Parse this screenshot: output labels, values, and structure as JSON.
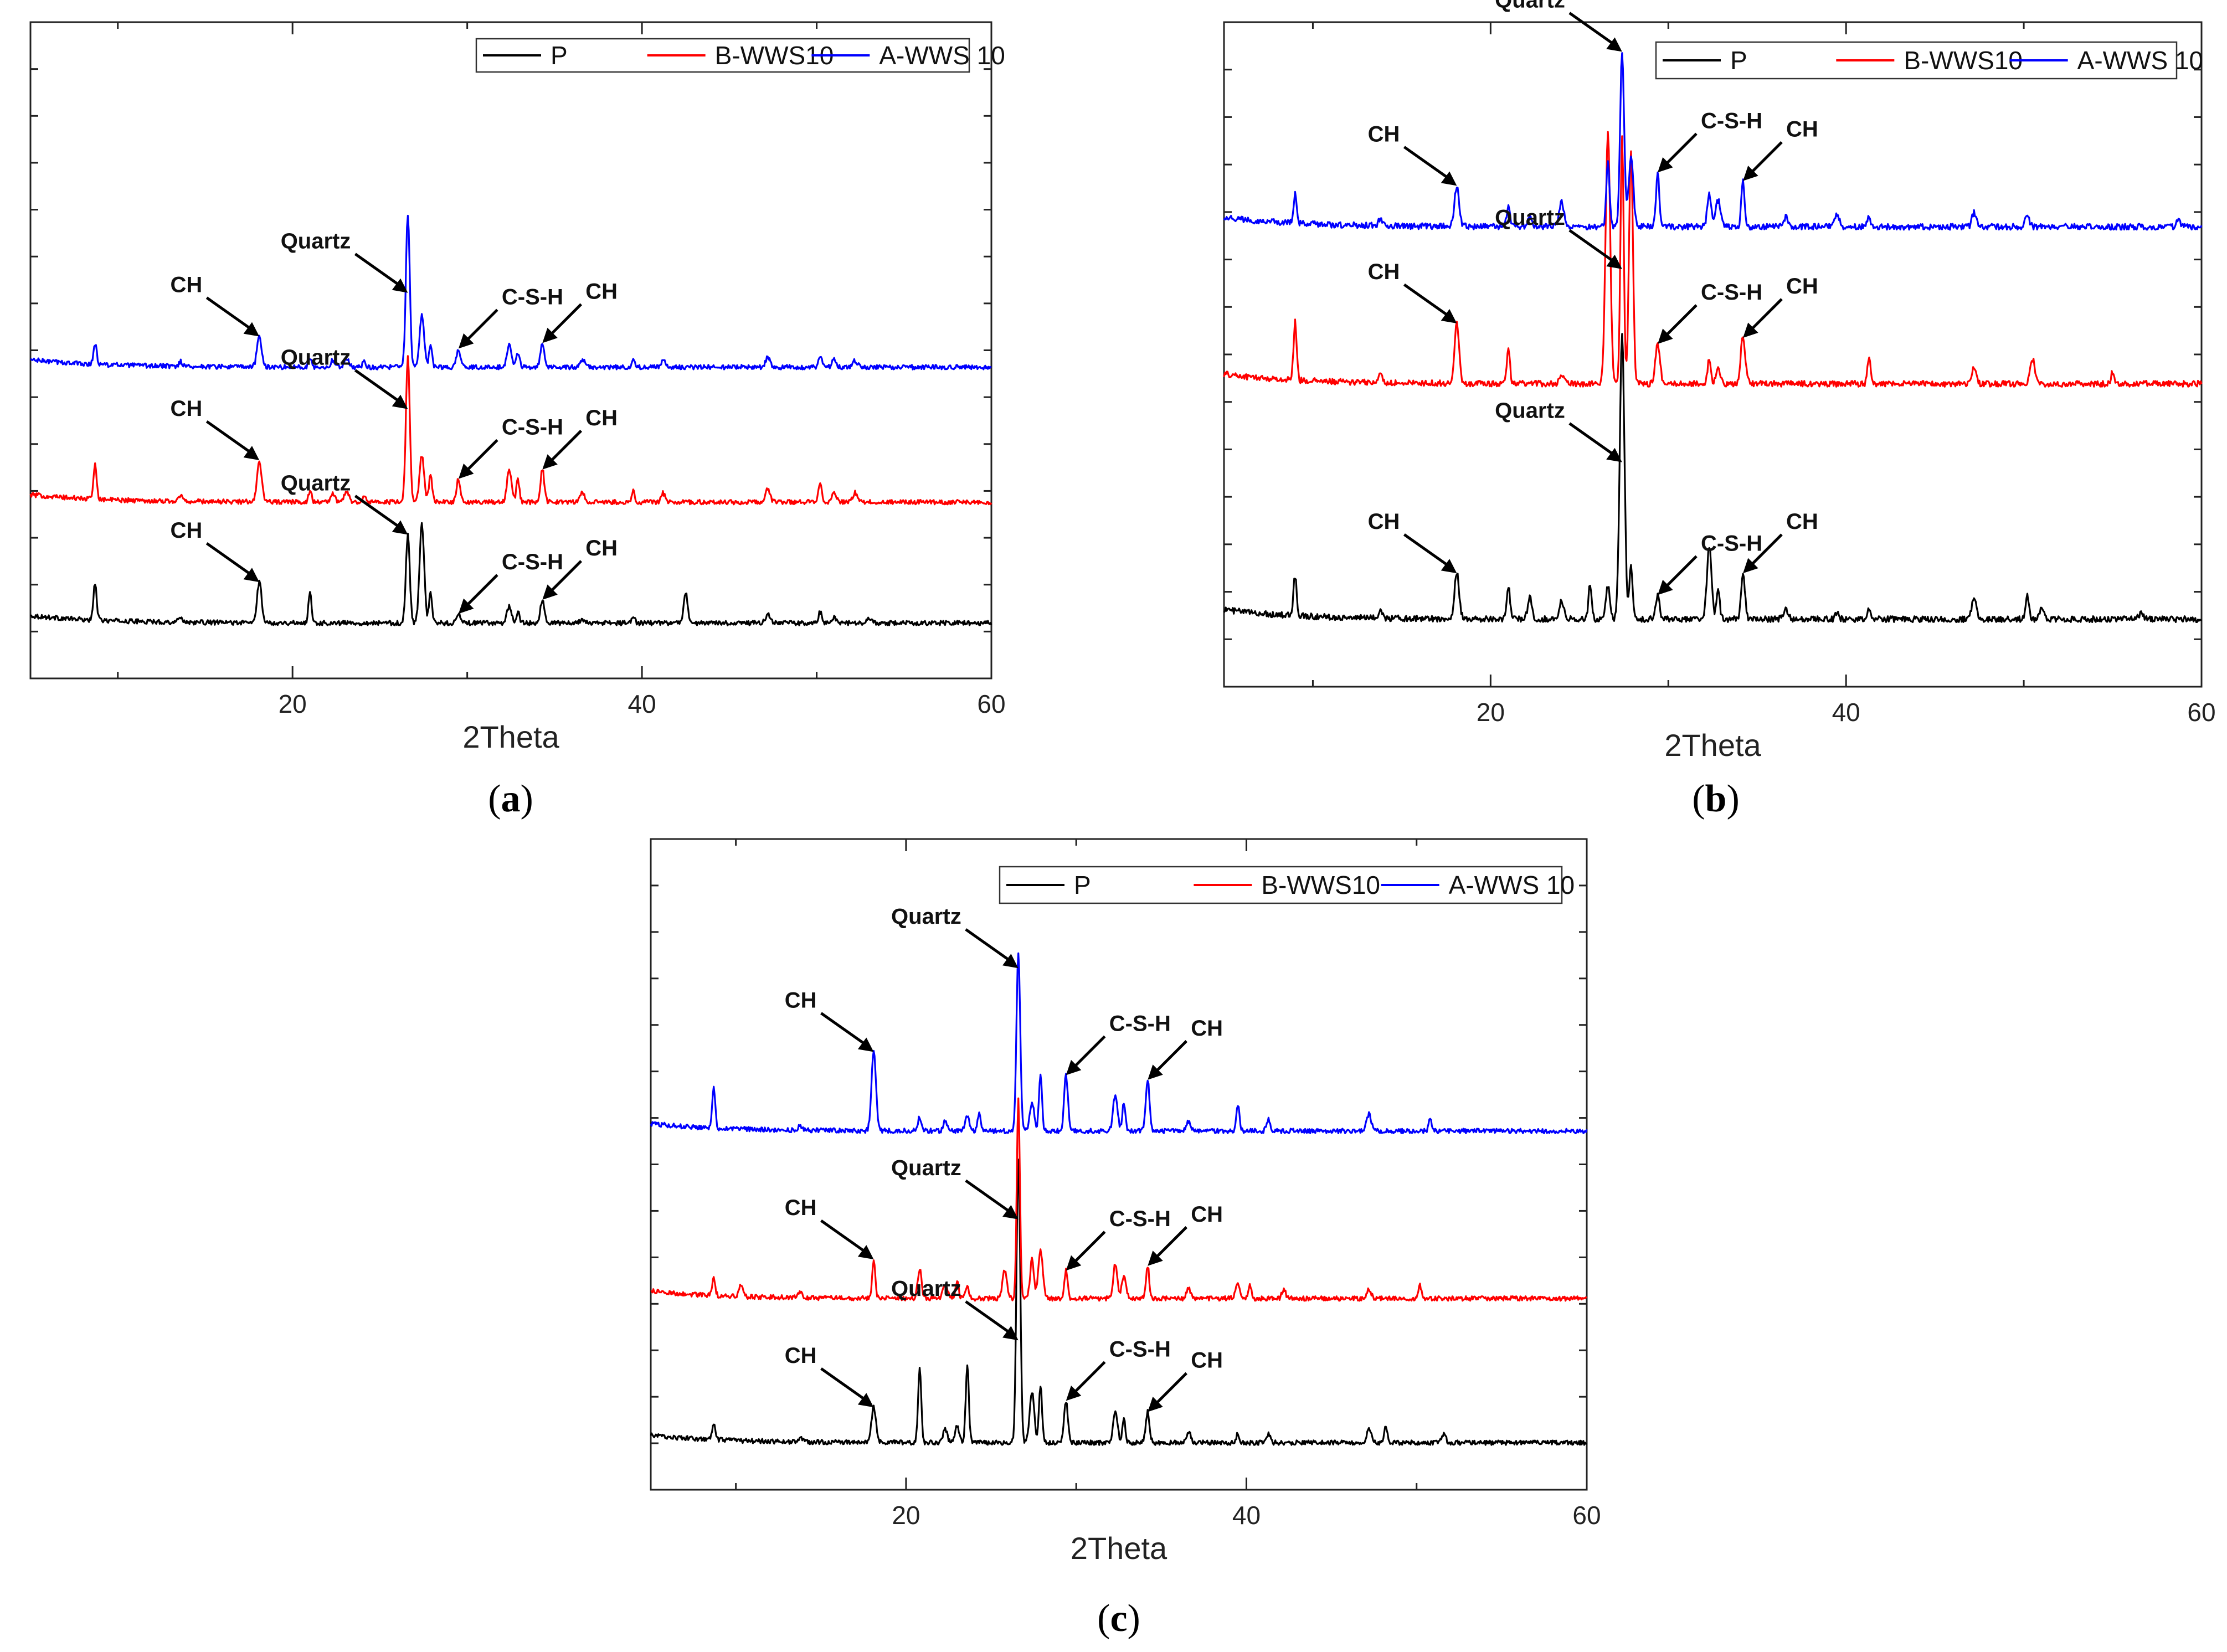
{
  "chart_data": [
    {
      "id": "a",
      "type": "line",
      "panel_label": "a",
      "xlabel": "2Theta",
      "ylabel": "",
      "xlim": [
        5,
        60
      ],
      "xticks": [
        20,
        40,
        60
      ],
      "legend": {
        "placement": "top-right",
        "entries": [
          "P",
          "B-WWS10",
          "A-WWS 10"
        ]
      },
      "series": [
        {
          "name": "P",
          "color": "#000000",
          "offset": 0.0,
          "x": [
            8.7,
            13.6,
            18.1,
            21.0,
            26.6,
            27.4,
            27.9,
            29.5,
            32.4,
            32.9,
            34.3,
            36.6,
            39.5,
            42.5,
            47.2,
            50.2,
            51.0,
            53.0
          ],
          "y": [
            0.4,
            0.06,
            0.44,
            0.32,
            0.95,
            1.08,
            0.32,
            0.1,
            0.18,
            0.12,
            0.25,
            0.04,
            0.07,
            0.33,
            0.1,
            0.12,
            0.06,
            0.04
          ]
        },
        {
          "name": "B-WWS10",
          "color": "#ff0000",
          "offset": 1.3,
          "x": [
            8.7,
            13.6,
            18.1,
            21.0,
            22.3,
            23.1,
            24.1,
            26.6,
            27.4,
            27.9,
            29.5,
            32.4,
            32.9,
            34.3,
            36.6,
            39.5,
            41.2,
            47.2,
            50.2,
            51.0,
            52.2
          ],
          "y": [
            0.38,
            0.06,
            0.45,
            0.12,
            0.1,
            0.12,
            0.08,
            1.55,
            0.5,
            0.3,
            0.25,
            0.34,
            0.24,
            0.35,
            0.1,
            0.12,
            0.1,
            0.15,
            0.2,
            0.12,
            0.1
          ]
        },
        {
          "name": "A-WWS 10",
          "color": "#0000ff",
          "offset": 2.75,
          "x": [
            8.7,
            13.6,
            18.1,
            21.0,
            22.3,
            23.1,
            24.1,
            26.6,
            27.4,
            27.9,
            29.5,
            32.4,
            32.9,
            34.3,
            36.6,
            39.5,
            41.2,
            47.2,
            50.2,
            51.0,
            52.2
          ],
          "y": [
            0.22,
            0.05,
            0.33,
            0.1,
            0.08,
            0.1,
            0.07,
            1.65,
            0.55,
            0.22,
            0.2,
            0.25,
            0.16,
            0.26,
            0.08,
            0.1,
            0.08,
            0.1,
            0.13,
            0.09,
            0.07
          ]
        }
      ],
      "annotations": [
        {
          "text": "CH",
          "series": "P",
          "x": 18.1,
          "y": 0.44
        },
        {
          "text": "Quartz",
          "series": "P",
          "x": 26.6,
          "y": 0.95
        },
        {
          "text": "C-S-H",
          "series": "P",
          "x": 29.5,
          "y": 0.1
        },
        {
          "text": "CH",
          "series": "P",
          "x": 34.3,
          "y": 0.25
        },
        {
          "text": "CH",
          "series": "B-WWS10",
          "x": 18.1,
          "y": 0.45
        },
        {
          "text": "Quartz",
          "series": "B-WWS10",
          "x": 26.6,
          "y": 1.0
        },
        {
          "text": "C-S-H",
          "series": "B-WWS10",
          "x": 29.5,
          "y": 0.25
        },
        {
          "text": "CH",
          "series": "B-WWS10",
          "x": 34.3,
          "y": 0.35
        },
        {
          "text": "CH",
          "series": "A-WWS 10",
          "x": 18.1,
          "y": 0.33
        },
        {
          "text": "Quartz",
          "series": "A-WWS 10",
          "x": 26.6,
          "y": 0.8
        },
        {
          "text": "C-S-H",
          "series": "A-WWS 10",
          "x": 29.5,
          "y": 0.2
        },
        {
          "text": "CH",
          "series": "A-WWS 10",
          "x": 34.3,
          "y": 0.26
        }
      ]
    },
    {
      "id": "b",
      "type": "line",
      "panel_label": "b",
      "xlabel": "2Theta",
      "ylabel": "",
      "xlim": [
        5,
        60
      ],
      "xticks": [
        20,
        40,
        60
      ],
      "legend": {
        "placement": "top-right",
        "entries": [
          "P",
          "B-WWS10",
          "A-WWS 10"
        ]
      },
      "series": [
        {
          "name": "P",
          "color": "#000000",
          "offset": 0.0,
          "x": [
            9.0,
            13.8,
            18.1,
            21.0,
            22.2,
            24.0,
            25.6,
            26.6,
            27.4,
            27.9,
            29.4,
            32.3,
            32.8,
            34.2,
            36.6,
            39.5,
            41.3,
            47.2,
            50.2,
            51.0,
            56.6
          ],
          "y": [
            0.33,
            0.07,
            0.38,
            0.28,
            0.18,
            0.15,
            0.3,
            0.28,
            2.35,
            0.45,
            0.2,
            0.6,
            0.25,
            0.38,
            0.08,
            0.06,
            0.08,
            0.17,
            0.2,
            0.1,
            0.05
          ]
        },
        {
          "name": "B-WWS10",
          "color": "#ff0000",
          "offset": 1.95,
          "x": [
            9.0,
            13.8,
            18.1,
            21.0,
            24.0,
            26.6,
            27.4,
            27.9,
            29.4,
            32.3,
            32.8,
            34.2,
            41.3,
            47.2,
            50.5,
            55.0
          ],
          "y": [
            0.48,
            0.07,
            0.5,
            0.28,
            0.08,
            2.1,
            2.05,
            1.95,
            0.33,
            0.2,
            0.15,
            0.38,
            0.22,
            0.14,
            0.2,
            0.1
          ]
        },
        {
          "name": "A-WWS 10",
          "color": "#0000ff",
          "offset": 3.25,
          "x": [
            9.0,
            13.8,
            18.1,
            21.0,
            22.2,
            24.0,
            26.6,
            27.4,
            27.9,
            29.4,
            32.3,
            32.8,
            34.2,
            36.6,
            39.5,
            41.3,
            47.2,
            50.2,
            58.7
          ],
          "y": [
            0.24,
            0.05,
            0.34,
            0.18,
            0.1,
            0.2,
            0.55,
            1.45,
            0.58,
            0.45,
            0.28,
            0.22,
            0.38,
            0.08,
            0.1,
            0.08,
            0.12,
            0.08,
            0.06
          ]
        }
      ],
      "annotations": [
        {
          "text": "CH",
          "series": "P",
          "x": 18.1,
          "y": 0.38
        },
        {
          "text": "Quartz",
          "series": "P",
          "x": 27.4,
          "y": 1.3
        },
        {
          "text": "C-S-H",
          "series": "P",
          "x": 29.4,
          "y": 0.2
        },
        {
          "text": "CH",
          "series": "P",
          "x": 34.2,
          "y": 0.38
        },
        {
          "text": "CH",
          "series": "B-WWS10",
          "x": 18.1,
          "y": 0.5
        },
        {
          "text": "Quartz",
          "series": "B-WWS10",
          "x": 27.4,
          "y": 0.95
        },
        {
          "text": "C-S-H",
          "series": "B-WWS10",
          "x": 29.4,
          "y": 0.33
        },
        {
          "text": "CH",
          "series": "B-WWS10",
          "x": 34.2,
          "y": 0.38
        },
        {
          "text": "CH",
          "series": "A-WWS 10",
          "x": 18.1,
          "y": 0.34
        },
        {
          "text": "Quartz",
          "series": "A-WWS 10",
          "x": 27.4,
          "y": 1.45
        },
        {
          "text": "C-S-H",
          "series": "A-WWS 10",
          "x": 29.4,
          "y": 0.45
        },
        {
          "text": "CH",
          "series": "A-WWS 10",
          "x": 34.2,
          "y": 0.38
        }
      ]
    },
    {
      "id": "c",
      "type": "line",
      "panel_label": "c",
      "xlabel": "2Theta",
      "ylabel": "",
      "xlim": [
        5,
        60
      ],
      "xticks": [
        20,
        40,
        60
      ],
      "legend": {
        "placement": "top-right",
        "entries": [
          "P",
          "B-WWS10",
          "A-WWS 10"
        ]
      },
      "series": [
        {
          "name": "P",
          "color": "#000000",
          "offset": 0.0,
          "x": [
            8.7,
            13.8,
            18.1,
            20.8,
            22.3,
            23.0,
            23.6,
            26.6,
            27.4,
            27.9,
            29.4,
            32.3,
            32.8,
            34.2,
            36.6,
            39.5,
            41.3,
            47.2,
            48.2,
            51.6
          ],
          "y": [
            0.17,
            0.05,
            0.38,
            0.82,
            0.15,
            0.18,
            0.85,
            3.05,
            0.55,
            0.62,
            0.45,
            0.32,
            0.25,
            0.33,
            0.12,
            0.1,
            0.09,
            0.15,
            0.18,
            0.1
          ]
        },
        {
          "name": "B-WWS10",
          "color": "#ff0000",
          "offset": 1.55,
          "x": [
            8.7,
            10.3,
            13.8,
            18.1,
            20.8,
            22.3,
            23.0,
            23.6,
            25.8,
            26.6,
            27.4,
            27.9,
            29.4,
            32.3,
            32.8,
            34.2,
            36.6,
            39.5,
            40.2,
            42.2,
            47.2,
            50.2
          ],
          "y": [
            0.18,
            0.12,
            0.05,
            0.42,
            0.32,
            0.15,
            0.18,
            0.12,
            0.3,
            2.15,
            0.42,
            0.52,
            0.3,
            0.38,
            0.24,
            0.35,
            0.12,
            0.15,
            0.14,
            0.1,
            0.1,
            0.14
          ]
        },
        {
          "name": "A-WWS 10",
          "color": "#0000ff",
          "offset": 3.35,
          "x": [
            8.7,
            13.8,
            18.1,
            20.8,
            22.3,
            23.6,
            24.3,
            26.6,
            27.4,
            27.9,
            29.4,
            32.3,
            32.8,
            34.2,
            36.6,
            39.5,
            41.3,
            47.2,
            50.8
          ],
          "y": [
            0.45,
            0.05,
            0.85,
            0.15,
            0.1,
            0.15,
            0.2,
            1.9,
            0.3,
            0.62,
            0.6,
            0.4,
            0.3,
            0.55,
            0.1,
            0.28,
            0.12,
            0.18,
            0.12
          ]
        }
      ],
      "annotations": [
        {
          "text": "CH",
          "series": "P",
          "x": 18.1,
          "y": 0.38
        },
        {
          "text": "Quartz",
          "series": "P",
          "x": 26.6,
          "y": 1.1
        },
        {
          "text": "C-S-H",
          "series": "P",
          "x": 29.4,
          "y": 0.45
        },
        {
          "text": "CH",
          "series": "P",
          "x": 34.2,
          "y": 0.33
        },
        {
          "text": "CH",
          "series": "B-WWS10",
          "x": 18.1,
          "y": 0.42
        },
        {
          "text": "Quartz",
          "series": "B-WWS10",
          "x": 26.6,
          "y": 0.85
        },
        {
          "text": "C-S-H",
          "series": "B-WWS10",
          "x": 29.4,
          "y": 0.3
        },
        {
          "text": "CH",
          "series": "B-WWS10",
          "x": 34.2,
          "y": 0.35
        },
        {
          "text": "CH",
          "series": "A-WWS 10",
          "x": 18.1,
          "y": 0.85
        },
        {
          "text": "Quartz",
          "series": "A-WWS 10",
          "x": 26.6,
          "y": 1.75
        },
        {
          "text": "C-S-H",
          "series": "A-WWS 10",
          "x": 29.4,
          "y": 0.6
        },
        {
          "text": "CH",
          "series": "A-WWS 10",
          "x": 34.2,
          "y": 0.55
        }
      ]
    }
  ]
}
